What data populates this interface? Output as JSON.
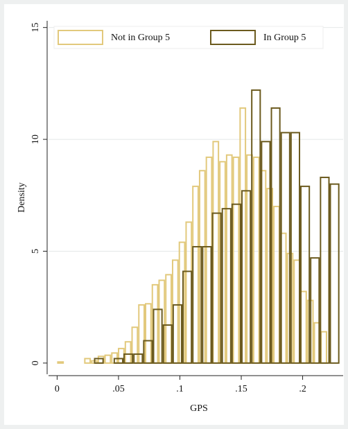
{
  "chart_data": {
    "type": "histogram",
    "x_label": "GPS",
    "y_label": "Density",
    "xlim": [
      -0.007,
      0.233
    ],
    "ylim": [
      -0.5,
      15.3
    ],
    "xticks": [
      0,
      {
        "value": 0.05,
        "label": ".05"
      },
      {
        "value": 0.1,
        "label": ".1"
      },
      {
        "value": 0.15,
        "label": ".15"
      },
      {
        "value": 0.2,
        "label": ".2"
      }
    ],
    "yticks": [
      0,
      5,
      10,
      15
    ],
    "grid": true,
    "legend": "top",
    "series": [
      {
        "name": "Not in Group 5",
        "color": "#e2c97c",
        "bins": [
          0,
          0.0055,
          0.011,
          0.0165,
          0.022,
          0.0275,
          0.033,
          0.0385,
          0.044,
          0.0495,
          0.055,
          0.0605,
          0.066,
          0.0715,
          0.077,
          0.0825,
          0.088,
          0.0935,
          0.099,
          0.1045,
          0.11,
          0.1155,
          0.121,
          0.1265,
          0.132,
          0.1375,
          0.143,
          0.1485,
          0.154,
          0.1595,
          0.165,
          0.1705,
          0.176,
          0.1815,
          0.187,
          0.1925,
          0.198,
          0.2035,
          0.209,
          0.2145,
          0.22
        ],
        "values": [
          0.05,
          0,
          0,
          0,
          0.2,
          0.1,
          0.3,
          0.35,
          0.45,
          0.65,
          0.95,
          1.6,
          2.6,
          2.65,
          3.5,
          3.7,
          3.95,
          4.6,
          5.4,
          6.3,
          7.9,
          8.6,
          9.2,
          9.9,
          9.0,
          9.3,
          9.2,
          11.4,
          9.3,
          9.2,
          8.6,
          7.8,
          7.0,
          5.8,
          4.9,
          4.6,
          3.2,
          2.8,
          1.8,
          1.4
        ]
      },
      {
        "name": "In Group 5",
        "color": "#6b5a1e",
        "bins": [
          0.03,
          0.038,
          0.046,
          0.054,
          0.062,
          0.07,
          0.078,
          0.086,
          0.094,
          0.102,
          0.11,
          0.118,
          0.126,
          0.134,
          0.142,
          0.15,
          0.158,
          0.166,
          0.174,
          0.182,
          0.19,
          0.198,
          0.206,
          0.214,
          0.222,
          0.23
        ],
        "values": [
          0.2,
          0,
          0.2,
          0.4,
          0.4,
          1.0,
          2.4,
          1.7,
          2.6,
          4.1,
          5.2,
          5.2,
          6.7,
          6.9,
          7.1,
          7.7,
          12.2,
          9.9,
          11.4,
          10.3,
          10.3,
          7.9,
          4.7,
          8.3,
          8.0
        ]
      }
    ]
  }
}
